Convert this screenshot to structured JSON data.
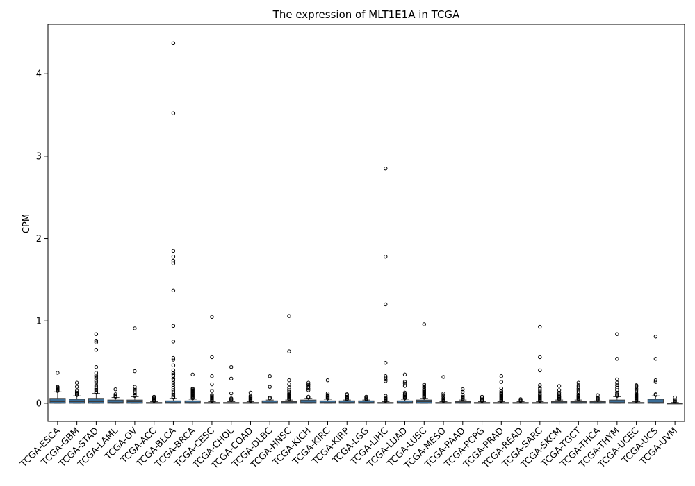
{
  "chart_data": {
    "type": "box",
    "title": "The expression of MLT1E1A in TCGA",
    "xlabel": "",
    "ylabel": "CPM",
    "ylim": [
      -0.22,
      4.6
    ],
    "yticks": [
      0,
      1,
      2,
      3,
      4
    ],
    "box_color": "#3a6d97",
    "grid": false,
    "categories": [
      "TCGA-ESCA",
      "TCGA-GBM",
      "TCGA-STAD",
      "TCGA-LAML",
      "TCGA-OV",
      "TCGA-ACC",
      "TCGA-BLCA",
      "TCGA-BRCA",
      "TCGA-CESC",
      "TCGA-CHOL",
      "TCGA-COAD",
      "TCGA-DLBC",
      "TCGA-HNSC",
      "TCGA-KICH",
      "TCGA-KIRC",
      "TCGA-KIRP",
      "TCGA-LGG",
      "TCGA-LIHC",
      "TCGA-LUAD",
      "TCGA-LUSC",
      "TCGA-MESO",
      "TCGA-PAAD",
      "TCGA-PCPG",
      "TCGA-PRAD",
      "TCGA-READ",
      "TCGA-SARC",
      "TCGA-SKCM",
      "TCGA-TGCT",
      "TCGA-THCA",
      "TCGA-THYM",
      "TCGA-UCEC",
      "TCGA-UCS",
      "TCGA-UVM"
    ],
    "boxes": [
      {
        "min": 0,
        "q1": 0.0,
        "median": 0.02,
        "q3": 0.06,
        "max": 0.14,
        "outliers": [
          0.37,
          0.2,
          0.19,
          0.18,
          0.17,
          0.16,
          0.15
        ]
      },
      {
        "min": 0,
        "q1": 0.0,
        "median": 0.02,
        "q3": 0.05,
        "max": 0.09,
        "outliers": [
          0.25,
          0.2,
          0.15,
          0.13,
          0.12,
          0.11,
          0.1
        ]
      },
      {
        "min": 0,
        "q1": 0.0,
        "median": 0.02,
        "q3": 0.06,
        "max": 0.12,
        "outliers": [
          0.84,
          0.76,
          0.74,
          0.65,
          0.44,
          0.37,
          0.34,
          0.32,
          0.3,
          0.27,
          0.25,
          0.22,
          0.2,
          0.18,
          0.16,
          0.14,
          0.13
        ]
      },
      {
        "min": 0,
        "q1": 0.0,
        "median": 0.01,
        "q3": 0.04,
        "max": 0.07,
        "outliers": [
          0.17,
          0.11,
          0.09,
          0.08
        ]
      },
      {
        "min": 0,
        "q1": 0.0,
        "median": 0.02,
        "q3": 0.04,
        "max": 0.08,
        "outliers": [
          0.91,
          0.39,
          0.2,
          0.18,
          0.16,
          0.14,
          0.12,
          0.1,
          0.09
        ]
      },
      {
        "min": 0,
        "q1": 0.0,
        "median": 0.0,
        "q3": 0.01,
        "max": 0.02,
        "outliers": [
          0.08,
          0.07,
          0.06,
          0.05,
          0.04,
          0.03
        ]
      },
      {
        "min": 0,
        "q1": 0.0,
        "median": 0.01,
        "q3": 0.03,
        "max": 0.06,
        "outliers": [
          4.37,
          3.52,
          1.85,
          1.78,
          1.73,
          1.7,
          1.37,
          0.94,
          0.75,
          0.55,
          0.53,
          0.46,
          0.4,
          0.37,
          0.35,
          0.33,
          0.3,
          0.28,
          0.25,
          0.22,
          0.19,
          0.16,
          0.14,
          0.12,
          0.1,
          0.08,
          0.07
        ]
      },
      {
        "min": 0,
        "q1": 0.0,
        "median": 0.01,
        "q3": 0.03,
        "max": 0.05,
        "outliers": [
          0.35,
          0.18,
          0.17,
          0.16,
          0.15,
          0.14,
          0.13,
          0.12,
          0.11,
          0.1,
          0.09,
          0.08,
          0.07,
          0.06
        ]
      },
      {
        "min": 0,
        "q1": 0.0,
        "median": 0.0,
        "q3": 0.01,
        "max": 0.02,
        "outliers": [
          1.05,
          0.56,
          0.33,
          0.23,
          0.15,
          0.1,
          0.09,
          0.08,
          0.07,
          0.06,
          0.05,
          0.04,
          0.03
        ]
      },
      {
        "min": 0,
        "q1": 0.0,
        "median": 0.0,
        "q3": 0.01,
        "max": 0.02,
        "outliers": [
          0.44,
          0.3,
          0.12,
          0.06,
          0.05,
          0.04
        ]
      },
      {
        "min": 0,
        "q1": 0.0,
        "median": 0.0,
        "q3": 0.01,
        "max": 0.02,
        "outliers": [
          0.13,
          0.09,
          0.08,
          0.07,
          0.06,
          0.05,
          0.04,
          0.03
        ]
      },
      {
        "min": 0,
        "q1": 0.0,
        "median": 0.01,
        "q3": 0.03,
        "max": 0.04,
        "outliers": [
          0.33,
          0.2,
          0.07,
          0.06
        ]
      },
      {
        "min": 0,
        "q1": 0.0,
        "median": 0.01,
        "q3": 0.02,
        "max": 0.04,
        "outliers": [
          1.06,
          0.63,
          0.28,
          0.23,
          0.19,
          0.16,
          0.14,
          0.12,
          0.11,
          0.1,
          0.09,
          0.08,
          0.07,
          0.06,
          0.05
        ]
      },
      {
        "min": 0,
        "q1": 0.0,
        "median": 0.01,
        "q3": 0.04,
        "max": 0.06,
        "outliers": [
          0.25,
          0.23,
          0.22,
          0.2,
          0.18,
          0.16,
          0.08,
          0.07
        ]
      },
      {
        "min": 0,
        "q1": 0.0,
        "median": 0.01,
        "q3": 0.03,
        "max": 0.05,
        "outliers": [
          0.28,
          0.12,
          0.1,
          0.09,
          0.08,
          0.07,
          0.06
        ]
      },
      {
        "min": 0,
        "q1": 0.0,
        "median": 0.01,
        "q3": 0.03,
        "max": 0.04,
        "outliers": [
          0.11,
          0.1,
          0.08,
          0.07,
          0.06,
          0.05
        ]
      },
      {
        "min": 0,
        "q1": 0.0,
        "median": 0.01,
        "q3": 0.03,
        "max": 0.04,
        "outliers": [
          0.08,
          0.07,
          0.06,
          0.05
        ]
      },
      {
        "min": 0,
        "q1": 0.0,
        "median": 0.0,
        "q3": 0.01,
        "max": 0.02,
        "outliers": [
          2.85,
          1.78,
          1.2,
          0.49,
          0.33,
          0.31,
          0.29,
          0.27,
          0.09,
          0.07,
          0.06,
          0.05,
          0.04,
          0.03
        ]
      },
      {
        "min": 0,
        "q1": 0.0,
        "median": 0.01,
        "q3": 0.03,
        "max": 0.05,
        "outliers": [
          0.35,
          0.26,
          0.24,
          0.21,
          0.13,
          0.11,
          0.1,
          0.09,
          0.08,
          0.07,
          0.06
        ]
      },
      {
        "min": 0,
        "q1": 0.0,
        "median": 0.02,
        "q3": 0.04,
        "max": 0.06,
        "outliers": [
          0.96,
          0.23,
          0.22,
          0.2,
          0.19,
          0.17,
          0.16,
          0.15,
          0.14,
          0.13,
          0.12,
          0.11,
          0.1,
          0.09,
          0.08,
          0.07
        ]
      },
      {
        "min": 0,
        "q1": 0.0,
        "median": 0.0,
        "q3": 0.01,
        "max": 0.02,
        "outliers": [
          0.32,
          0.12,
          0.1,
          0.08,
          0.06,
          0.05,
          0.04,
          0.03
        ]
      },
      {
        "min": 0,
        "q1": 0.0,
        "median": 0.01,
        "q3": 0.02,
        "max": 0.04,
        "outliers": [
          0.17,
          0.14,
          0.1,
          0.08,
          0.07,
          0.06,
          0.05
        ]
      },
      {
        "min": 0,
        "q1": 0.0,
        "median": 0.0,
        "q3": 0.01,
        "max": 0.02,
        "outliers": [
          0.08,
          0.07,
          0.05,
          0.04,
          0.03
        ]
      },
      {
        "min": 0,
        "q1": 0.0,
        "median": 0.0,
        "q3": 0.01,
        "max": 0.02,
        "outliers": [
          0.33,
          0.26,
          0.18,
          0.15,
          0.13,
          0.12,
          0.11,
          0.1,
          0.09,
          0.08,
          0.07,
          0.06,
          0.05,
          0.04,
          0.03
        ]
      },
      {
        "min": 0,
        "q1": 0.0,
        "median": 0.0,
        "q3": 0.01,
        "max": 0.02,
        "outliers": [
          0.05,
          0.04,
          0.03
        ]
      },
      {
        "min": 0,
        "q1": 0.0,
        "median": 0.0,
        "q3": 0.01,
        "max": 0.02,
        "outliers": [
          0.93,
          0.56,
          0.4,
          0.22,
          0.19,
          0.17,
          0.15,
          0.13,
          0.11,
          0.1,
          0.09,
          0.08,
          0.07,
          0.06,
          0.05,
          0.04,
          0.03
        ]
      },
      {
        "min": 0,
        "q1": 0.0,
        "median": 0.01,
        "q3": 0.02,
        "max": 0.04,
        "outliers": [
          0.21,
          0.16,
          0.13,
          0.11,
          0.09,
          0.08,
          0.07,
          0.06,
          0.05
        ]
      },
      {
        "min": 0,
        "q1": 0.0,
        "median": 0.01,
        "q3": 0.02,
        "max": 0.04,
        "outliers": [
          0.25,
          0.22,
          0.2,
          0.18,
          0.16,
          0.14,
          0.12,
          0.1,
          0.09,
          0.08,
          0.07,
          0.06,
          0.05
        ]
      },
      {
        "min": 0,
        "q1": 0.0,
        "median": 0.01,
        "q3": 0.02,
        "max": 0.03,
        "outliers": [
          0.1,
          0.07,
          0.06,
          0.05,
          0.04
        ]
      },
      {
        "min": 0,
        "q1": 0.0,
        "median": 0.01,
        "q3": 0.04,
        "max": 0.08,
        "outliers": [
          0.84,
          0.54,
          0.29,
          0.25,
          0.22,
          0.19,
          0.16,
          0.13,
          0.11,
          0.1,
          0.09
        ]
      },
      {
        "min": 0,
        "q1": 0.0,
        "median": 0.0,
        "q3": 0.01,
        "max": 0.02,
        "outliers": [
          0.22,
          0.21,
          0.2,
          0.18,
          0.16,
          0.14,
          0.12,
          0.11,
          0.1,
          0.09,
          0.08,
          0.07,
          0.06,
          0.05,
          0.04,
          0.03
        ]
      },
      {
        "min": 0,
        "q1": 0.0,
        "median": 0.01,
        "q3": 0.05,
        "max": 0.09,
        "outliers": [
          0.81,
          0.54,
          0.28,
          0.26,
          0.11,
          0.1
        ]
      },
      {
        "min": 0,
        "q1": 0.0,
        "median": 0.0,
        "q3": 0.0,
        "max": 0.01,
        "outliers": [
          0.07,
          0.04,
          0.03,
          0.02
        ]
      }
    ]
  }
}
